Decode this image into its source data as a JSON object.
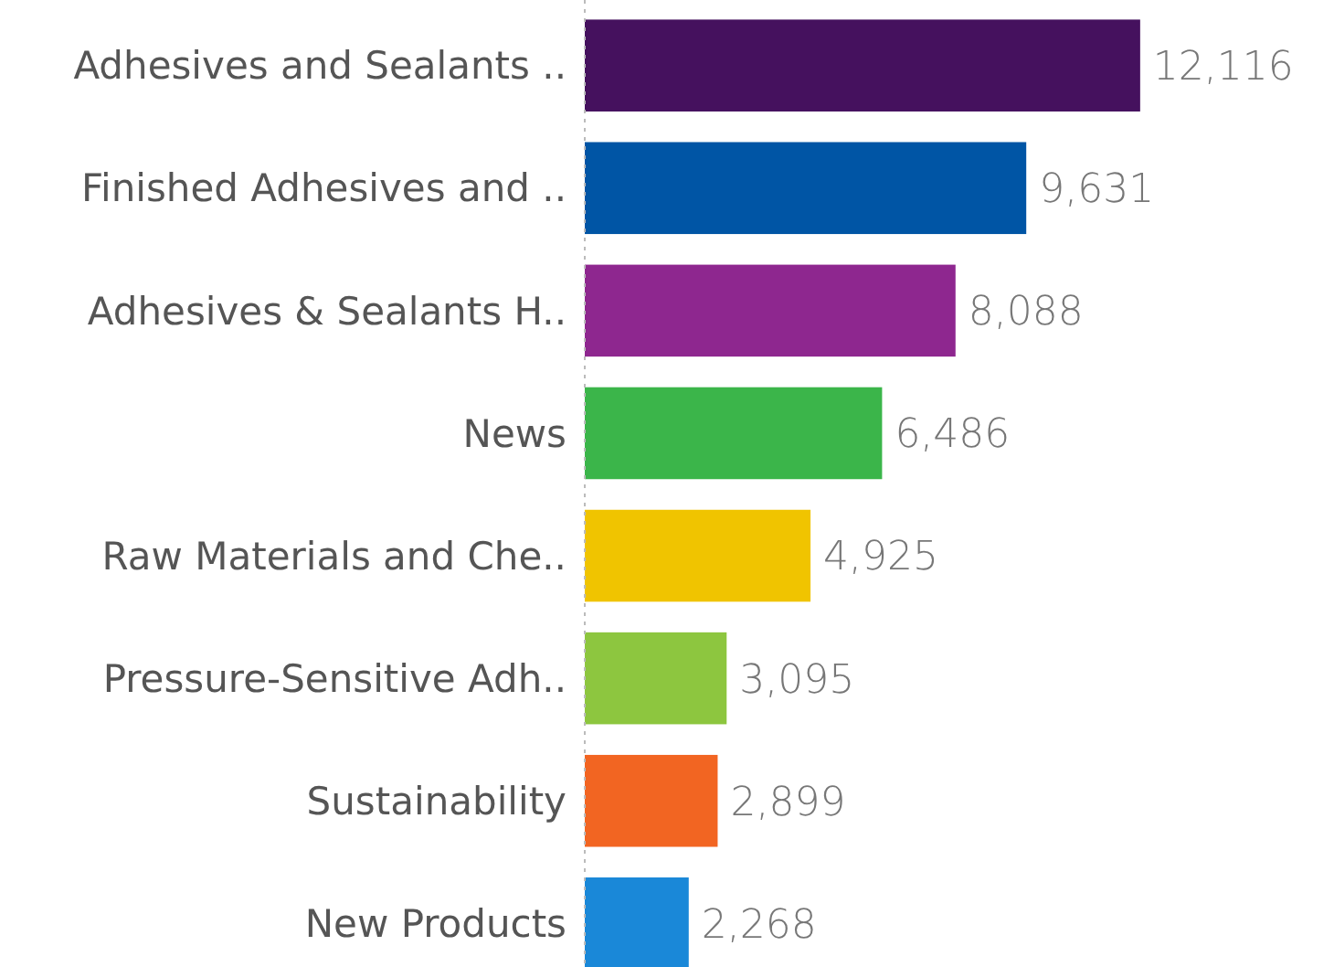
{
  "chart_data": {
    "type": "bar",
    "orientation": "horizontal",
    "value_labels": [
      "12,116",
      "9,631",
      "8,088",
      "6,486",
      "4,925",
      "3,095",
      "2,899",
      "2,268"
    ],
    "categories": [
      "Adhesives and Sealants ..",
      "Finished Adhesives and ..",
      "Adhesives & Sealants H..",
      "News",
      "Raw Materials and Che..",
      "Pressure-Sensitive Adh..",
      "Sustainability",
      "New Products"
    ],
    "values": [
      12116,
      9631,
      8088,
      6486,
      4925,
      3095,
      2899,
      2268
    ],
    "colors": [
      "#45115e",
      "#0055a5",
      "#8e278f",
      "#3bb54a",
      "#f0c400",
      "#8dc63f",
      "#f26522",
      "#1a88d8"
    ]
  }
}
